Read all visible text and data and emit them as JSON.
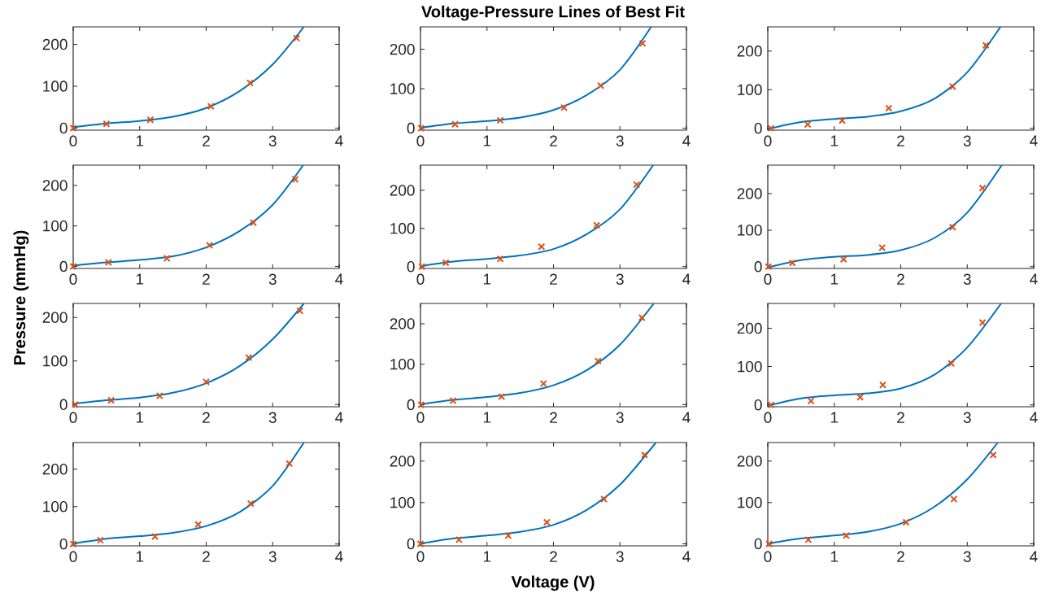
{
  "chart_data": [
    {
      "type": "line",
      "xlim": [
        0,
        4
      ],
      "ylim": [
        -5,
        242
      ],
      "xticks": [
        0,
        1,
        2,
        3,
        4
      ],
      "yticks": [
        0,
        100,
        200
      ],
      "series": [
        {
          "type": "line",
          "color": "#0072bd",
          "x": [
            0,
            0.5,
            1,
            1.5,
            2,
            2.5,
            3,
            3.47
          ],
          "values": [
            2,
            11,
            17,
            27,
            48,
            88,
            152,
            242
          ]
        },
        {
          "type": "scatter",
          "color": "#d95319",
          "marker": "cross",
          "x": [
            0,
            0.5,
            1.16,
            2.07,
            2.66,
            3.36
          ],
          "values": [
            0,
            10,
            20,
            52,
            108,
            215
          ]
        }
      ]
    },
    {
      "type": "line",
      "title": "Voltage-Pressure Lines of Best Fit",
      "xlim": [
        0,
        4
      ],
      "ylim": [
        -5,
        257
      ],
      "xticks": [
        0,
        1,
        2,
        3,
        4
      ],
      "yticks": [
        0,
        100,
        200
      ],
      "series": [
        {
          "type": "line",
          "color": "#0072bd",
          "x": [
            0,
            0.5,
            1,
            1.5,
            2,
            2.5,
            3,
            3.47
          ],
          "values": [
            1,
            12,
            18,
            27,
            46,
            84,
            148,
            257
          ]
        },
        {
          "type": "scatter",
          "color": "#d95319",
          "marker": "cross",
          "x": [
            0.01,
            0.52,
            1.2,
            2.16,
            2.71,
            3.34
          ],
          "values": [
            0,
            10,
            20,
            52,
            108,
            215
          ]
        }
      ]
    },
    {
      "type": "line",
      "xlim": [
        0,
        4
      ],
      "ylim": [
        -5,
        263
      ],
      "xticks": [
        0,
        1,
        2,
        3,
        4
      ],
      "yticks": [
        0,
        100,
        200
      ],
      "series": [
        {
          "type": "line",
          "color": "#0072bd",
          "x": [
            0,
            0.5,
            1,
            1.5,
            2,
            2.5,
            3,
            3.5
          ],
          "values": [
            -2,
            16,
            24,
            30,
            44,
            76,
            145,
            263
          ]
        },
        {
          "type": "scatter",
          "color": "#d95319",
          "marker": "cross",
          "x": [
            0.05,
            0.6,
            1.12,
            1.82,
            2.78,
            3.28
          ],
          "values": [
            0,
            10,
            20,
            52,
            108,
            215
          ]
        }
      ]
    },
    {
      "type": "line",
      "xlim": [
        0,
        4
      ],
      "ylim": [
        -5,
        250
      ],
      "xticks": [
        0,
        1,
        2,
        3,
        4
      ],
      "yticks": [
        0,
        100,
        200
      ],
      "series": [
        {
          "type": "line",
          "color": "#0072bd",
          "x": [
            0,
            0.5,
            1,
            1.5,
            2,
            2.5,
            3,
            3.46
          ],
          "values": [
            2,
            10,
            16,
            25,
            47,
            87,
            152,
            250
          ]
        },
        {
          "type": "scatter",
          "color": "#d95319",
          "marker": "cross",
          "x": [
            0,
            0.53,
            1.41,
            2.05,
            2.71,
            3.34
          ],
          "values": [
            0,
            10,
            20,
            52,
            108,
            215
          ]
        }
      ]
    },
    {
      "type": "line",
      "xlim": [
        0,
        4
      ],
      "ylim": [
        -5,
        266
      ],
      "xticks": [
        0,
        1,
        2,
        3,
        4
      ],
      "yticks": [
        0,
        100,
        200
      ],
      "series": [
        {
          "type": "line",
          "color": "#0072bd",
          "x": [
            0,
            0.5,
            1,
            1.5,
            2,
            2.5,
            3,
            3.5
          ],
          "values": [
            1,
            13,
            20,
            29,
            46,
            85,
            150,
            266
          ]
        },
        {
          "type": "scatter",
          "color": "#d95319",
          "marker": "cross",
          "x": [
            0.02,
            0.38,
            1.2,
            1.82,
            2.65,
            3.25
          ],
          "values": [
            0,
            10,
            20,
            52,
            108,
            215
          ]
        }
      ]
    },
    {
      "type": "line",
      "xlim": [
        0,
        4
      ],
      "ylim": [
        -5,
        278
      ],
      "xticks": [
        0,
        1,
        2,
        3,
        4
      ],
      "yticks": [
        0,
        100,
        200
      ],
      "series": [
        {
          "type": "line",
          "color": "#0072bd",
          "x": [
            0,
            0.5,
            1,
            1.5,
            2,
            2.5,
            3,
            3.52
          ],
          "values": [
            -2,
            18,
            27,
            32,
            45,
            78,
            148,
            278
          ]
        },
        {
          "type": "scatter",
          "color": "#d95319",
          "marker": "cross",
          "x": [
            0.01,
            0.37,
            1.14,
            1.72,
            2.78,
            3.23
          ],
          "values": [
            0,
            10,
            20,
            52,
            108,
            215
          ]
        }
      ]
    },
    {
      "type": "line",
      "ylabel": "Pressure (mmHg)",
      "xlim": [
        0,
        4
      ],
      "ylim": [
        -5,
        232
      ],
      "xticks": [
        0,
        1,
        2,
        3,
        4
      ],
      "yticks": [
        0,
        100,
        200
      ],
      "series": [
        {
          "type": "line",
          "color": "#0072bd",
          "x": [
            0,
            0.5,
            1,
            1.5,
            2,
            2.5,
            3,
            3.47
          ],
          "values": [
            2,
            10,
            16,
            27,
            49,
            88,
            150,
            232
          ]
        },
        {
          "type": "scatter",
          "color": "#d95319",
          "marker": "cross",
          "x": [
            0.03,
            0.57,
            1.3,
            2.0,
            2.64,
            3.41
          ],
          "values": [
            0,
            10,
            20,
            52,
            108,
            215
          ]
        }
      ]
    },
    {
      "type": "line",
      "xlim": [
        0,
        4
      ],
      "ylim": [
        -5,
        250
      ],
      "xticks": [
        0,
        1,
        2,
        3,
        4
      ],
      "yticks": [
        0,
        100,
        200
      ],
      "series": [
        {
          "type": "line",
          "color": "#0072bd",
          "x": [
            0,
            0.5,
            1,
            1.5,
            2,
            2.5,
            3,
            3.51
          ],
          "values": [
            1,
            12,
            19,
            29,
            48,
            85,
            148,
            250
          ]
        },
        {
          "type": "scatter",
          "color": "#d95319",
          "marker": "cross",
          "x": [
            0.01,
            0.49,
            1.22,
            1.85,
            2.67,
            3.33
          ],
          "values": [
            0,
            10,
            20,
            52,
            108,
            215
          ]
        }
      ]
    },
    {
      "type": "line",
      "xlim": [
        0,
        4
      ],
      "ylim": [
        -5,
        265
      ],
      "xticks": [
        0,
        1,
        2,
        3,
        4
      ],
      "yticks": [
        0,
        100,
        200
      ],
      "series": [
        {
          "color": "#0072bd",
          "x": [
            0,
            0.5,
            1,
            1.5,
            2,
            2.5,
            3,
            3.51
          ],
          "values": [
            -2,
            17,
            25,
            30,
            43,
            78,
            150,
            265
          ]
        },
        {
          "type": "scatter",
          "color": "#d95319",
          "marker": "cross",
          "x": [
            0.05,
            0.65,
            1.39,
            1.73,
            2.76,
            3.23
          ],
          "values": [
            0,
            10,
            20,
            52,
            108,
            215
          ]
        }
      ]
    },
    {
      "type": "line",
      "xlim": [
        0,
        4
      ],
      "ylim": [
        -5,
        271
      ],
      "xticks": [
        0,
        1,
        2,
        3,
        4
      ],
      "yticks": [
        0,
        100,
        200
      ],
      "series": [
        {
          "type": "line",
          "color": "#0072bd",
          "x": [
            0,
            0.5,
            1,
            1.5,
            2,
            2.5,
            3,
            3.47
          ],
          "values": [
            1,
            14,
            21,
            30,
            48,
            85,
            155,
            271
          ]
        },
        {
          "type": "scatter",
          "color": "#d95319",
          "marker": "cross",
          "x": [
            0,
            0.41,
            1.23,
            1.88,
            2.67,
            3.25
          ],
          "values": [
            0,
            10,
            20,
            52,
            108,
            215
          ]
        }
      ]
    },
    {
      "type": "line",
      "xlabel": "Voltage (V)",
      "xlim": [
        0,
        4
      ],
      "ylim": [
        -5,
        245
      ],
      "xticks": [
        0,
        1,
        2,
        3,
        4
      ],
      "yticks": [
        0,
        100,
        200
      ],
      "series": [
        {
          "type": "line",
          "color": "#0072bd",
          "x": [
            0,
            0.5,
            1,
            1.5,
            2,
            2.5,
            3,
            3.54
          ],
          "values": [
            0,
            13,
            20,
            29,
            46,
            82,
            143,
            245
          ]
        },
        {
          "type": "scatter",
          "color": "#d95319",
          "marker": "cross",
          "x": [
            0,
            0.58,
            1.32,
            1.9,
            2.76,
            3.37
          ],
          "values": [
            0,
            10,
            20,
            52,
            108,
            215
          ]
        }
      ]
    },
    {
      "type": "line",
      "xlim": [
        0,
        4
      ],
      "ylim": [
        -5,
        245
      ],
      "xticks": [
        0,
        1,
        2,
        3,
        4
      ],
      "yticks": [
        0,
        100,
        200
      ],
      "series": [
        {
          "color": "#0072bd",
          "x": [
            0,
            0.5,
            1,
            1.5,
            2,
            2.5,
            3,
            3.46
          ],
          "values": [
            0,
            13,
            20,
            29,
            49,
            89,
            156,
            245
          ]
        },
        {
          "type": "scatter",
          "color": "#d95319",
          "marker": "cross",
          "x": [
            0.02,
            0.61,
            1.18,
            2.08,
            2.8,
            3.39
          ],
          "values": [
            0,
            10,
            20,
            52,
            108,
            215
          ]
        }
      ]
    }
  ]
}
